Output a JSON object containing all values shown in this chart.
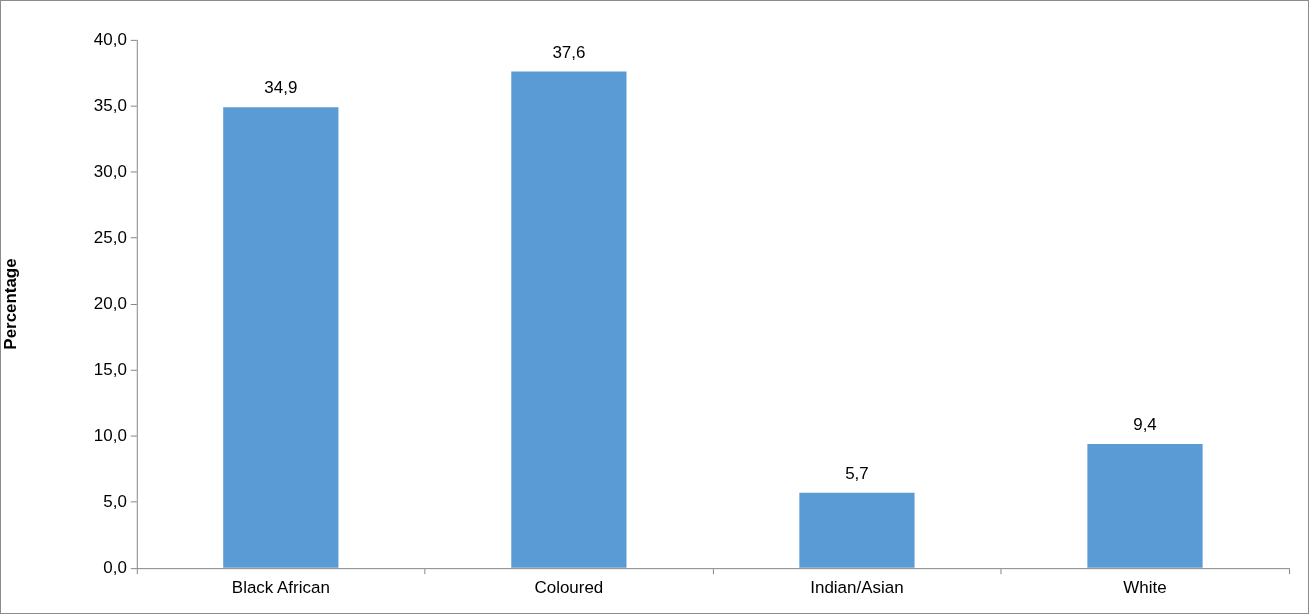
{
  "chart_data": {
    "type": "bar",
    "ylabel": "Percentage",
    "categories": [
      "Black African",
      "Coloured",
      "Indian/Asian",
      "White"
    ],
    "values": [
      34.9,
      37.6,
      5.7,
      9.4
    ],
    "value_labels": [
      "34,9",
      "37,6",
      "5,7",
      "9,4"
    ],
    "color": "#5b9bd5",
    "ylim": [
      0,
      40
    ],
    "yticks": [
      {
        "value": 0,
        "label": "0,0"
      },
      {
        "value": 5,
        "label": "5,0"
      },
      {
        "value": 10,
        "label": "10,0"
      },
      {
        "value": 15,
        "label": "15,0"
      },
      {
        "value": 20,
        "label": "20,0"
      },
      {
        "value": 25,
        "label": "25,0"
      },
      {
        "value": 30,
        "label": "30,0"
      },
      {
        "value": 35,
        "label": "35,0"
      },
      {
        "value": 40,
        "label": "40,0"
      }
    ],
    "grid": false,
    "legend": false
  }
}
